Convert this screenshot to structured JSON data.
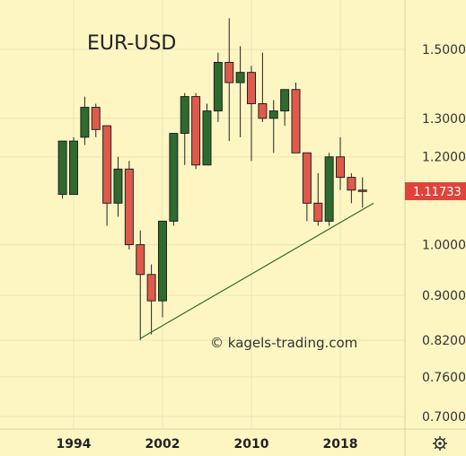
{
  "chart_data": {
    "type": "candlestick",
    "title": "EUR-USD",
    "watermark": "© kagels-trading.com",
    "current_price_label": "1.11733",
    "current_price": 1.11733,
    "y_scale": "log",
    "ylim": [
      0.68,
      1.62
    ],
    "y_ticks": [
      {
        "value": 0.7,
        "label": "0.70000"
      },
      {
        "value": 0.76,
        "label": "0.76000"
      },
      {
        "value": 0.82,
        "label": "0.82000"
      },
      {
        "value": 0.9,
        "label": "0.90000"
      },
      {
        "value": 1.0,
        "label": "1.00000"
      },
      {
        "value": 1.2,
        "label": "1.20000"
      },
      {
        "value": 1.3,
        "label": "1.30000"
      },
      {
        "value": 1.5,
        "label": "1.50000"
      }
    ],
    "x_ticks": [
      "1994",
      "2002",
      "2010",
      "2018"
    ],
    "grid": true,
    "candles": [
      {
        "year": 1993,
        "open": 1.11,
        "high": 1.24,
        "low": 1.1,
        "close": 1.24
      },
      {
        "year": 1994,
        "open": 1.11,
        "high": 1.25,
        "low": 1.11,
        "close": 1.24
      },
      {
        "year": 1995,
        "open": 1.25,
        "high": 1.36,
        "low": 1.23,
        "close": 1.33
      },
      {
        "year": 1996,
        "open": 1.33,
        "high": 1.34,
        "low": 1.25,
        "close": 1.27
      },
      {
        "year": 1997,
        "open": 1.28,
        "high": 1.28,
        "low": 1.04,
        "close": 1.09
      },
      {
        "year": 1998,
        "open": 1.09,
        "high": 1.2,
        "low": 1.06,
        "close": 1.17
      },
      {
        "year": 1999,
        "open": 1.17,
        "high": 1.19,
        "low": 0.99,
        "close": 1.0
      },
      {
        "year": 2000,
        "open": 1.0,
        "high": 1.03,
        "low": 0.82,
        "close": 0.94
      },
      {
        "year": 2001,
        "open": 0.94,
        "high": 0.96,
        "low": 0.83,
        "close": 0.89
      },
      {
        "year": 2002,
        "open": 0.89,
        "high": 1.05,
        "low": 0.86,
        "close": 1.05
      },
      {
        "year": 2003,
        "open": 1.05,
        "high": 1.26,
        "low": 1.04,
        "close": 1.26
      },
      {
        "year": 2004,
        "open": 1.26,
        "high": 1.37,
        "low": 1.18,
        "close": 1.36
      },
      {
        "year": 2005,
        "open": 1.36,
        "high": 1.37,
        "low": 1.17,
        "close": 1.18
      },
      {
        "year": 2006,
        "open": 1.18,
        "high": 1.34,
        "low": 1.18,
        "close": 1.32
      },
      {
        "year": 2007,
        "open": 1.32,
        "high": 1.49,
        "low": 1.29,
        "close": 1.46
      },
      {
        "year": 2008,
        "open": 1.46,
        "high": 1.6,
        "low": 1.24,
        "close": 1.4
      },
      {
        "year": 2009,
        "open": 1.4,
        "high": 1.51,
        "low": 1.25,
        "close": 1.43
      },
      {
        "year": 2010,
        "open": 1.43,
        "high": 1.45,
        "low": 1.19,
        "close": 1.34
      },
      {
        "year": 2011,
        "open": 1.34,
        "high": 1.49,
        "low": 1.29,
        "close": 1.3
      },
      {
        "year": 2012,
        "open": 1.3,
        "high": 1.35,
        "low": 1.21,
        "close": 1.32
      },
      {
        "year": 2013,
        "open": 1.32,
        "high": 1.38,
        "low": 1.28,
        "close": 1.38
      },
      {
        "year": 2014,
        "open": 1.38,
        "high": 1.4,
        "low": 1.21,
        "close": 1.21
      },
      {
        "year": 2015,
        "open": 1.21,
        "high": 1.21,
        "low": 1.05,
        "close": 1.09
      },
      {
        "year": 2016,
        "open": 1.09,
        "high": 1.16,
        "low": 1.04,
        "close": 1.05
      },
      {
        "year": 2017,
        "open": 1.05,
        "high": 1.21,
        "low": 1.04,
        "close": 1.2
      },
      {
        "year": 2018,
        "open": 1.2,
        "high": 1.25,
        "low": 1.12,
        "close": 1.15
      },
      {
        "year": 2019,
        "open": 1.15,
        "high": 1.16,
        "low": 1.09,
        "close": 1.12
      },
      {
        "year": 2020,
        "open": 1.12,
        "high": 1.15,
        "low": 1.08,
        "close": 1.117
      }
    ],
    "trendline": [
      {
        "year": 2000,
        "value": 0.823
      },
      {
        "year": 2021,
        "value": 1.09
      }
    ],
    "colors": {
      "background": "#fdf6c3",
      "grid": "#ece5b8",
      "up": "#2e6b2e",
      "down": "#e05a4c",
      "outline": "#222222",
      "trendline": "#2e6b2e",
      "price_tag": "#e0433a",
      "axis_panel_border": "#d8d1a5"
    },
    "settings_icon": "gear-icon"
  }
}
